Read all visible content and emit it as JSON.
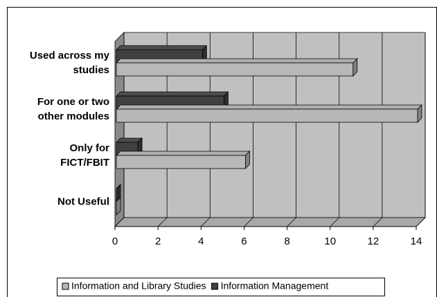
{
  "chart_data": {
    "type": "bar",
    "orientation": "horizontal",
    "three_d": true,
    "categories": [
      "Used across my studies",
      "For one or two other modules",
      "Only for FICT/FBIT",
      "Not Useful"
    ],
    "series": [
      {
        "name": "Information and Library Studies",
        "color": "#b8b8b8",
        "values": [
          11,
          14,
          6,
          0
        ]
      },
      {
        "name": "Information Management",
        "color": "#404040",
        "values": [
          4,
          5,
          1,
          0
        ]
      }
    ],
    "xlim": [
      0,
      14
    ],
    "xticks": [
      0,
      2,
      4,
      6,
      8,
      10,
      12,
      14
    ],
    "grid": true,
    "legend": "bottom"
  }
}
